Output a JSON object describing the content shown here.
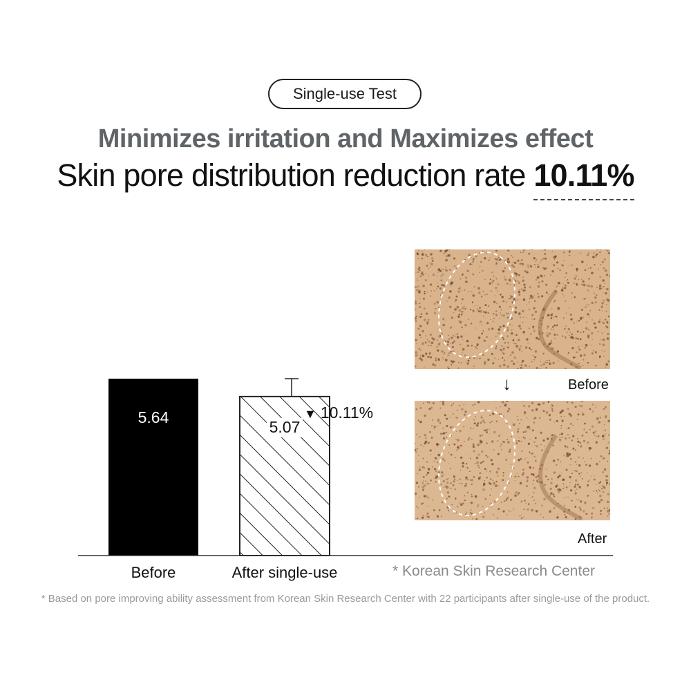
{
  "badge": {
    "label": "Single-use Test"
  },
  "header": {
    "subtitle": "Minimizes irritation and Maximizes effect",
    "headline_prefix": "Skin pore distribution reduction rate",
    "headline_rate": "10.11%"
  },
  "chart_data": {
    "type": "bar",
    "categories": [
      "Before",
      "After single-use"
    ],
    "values": [
      5.64,
      5.07
    ],
    "value_labels": [
      "5.64",
      "5.07"
    ],
    "fills": [
      "solid",
      "hatched"
    ],
    "error_bar_upper": [
      null,
      5.64
    ],
    "annotation": "10.11%",
    "ylim": [
      0,
      5.64
    ],
    "title": "",
    "xlabel": "",
    "ylabel": "",
    "colors": {
      "bar_solid": "#000000",
      "bar_hatch": "#222222",
      "axis": "#333333"
    }
  },
  "images": {
    "before_label": "Before",
    "after_label": "After",
    "arrow": "↓"
  },
  "source": "* Korean Skin Research Center",
  "footnote": "* Based on pore improving ability assessment from Korean Skin Research Center with 22 participants after single-use of the product.",
  "colors": {
    "skin": "#d9b48e",
    "pore": "#7a4a30",
    "subtitle": "#5f6468",
    "muted": "#8a8a8a"
  }
}
